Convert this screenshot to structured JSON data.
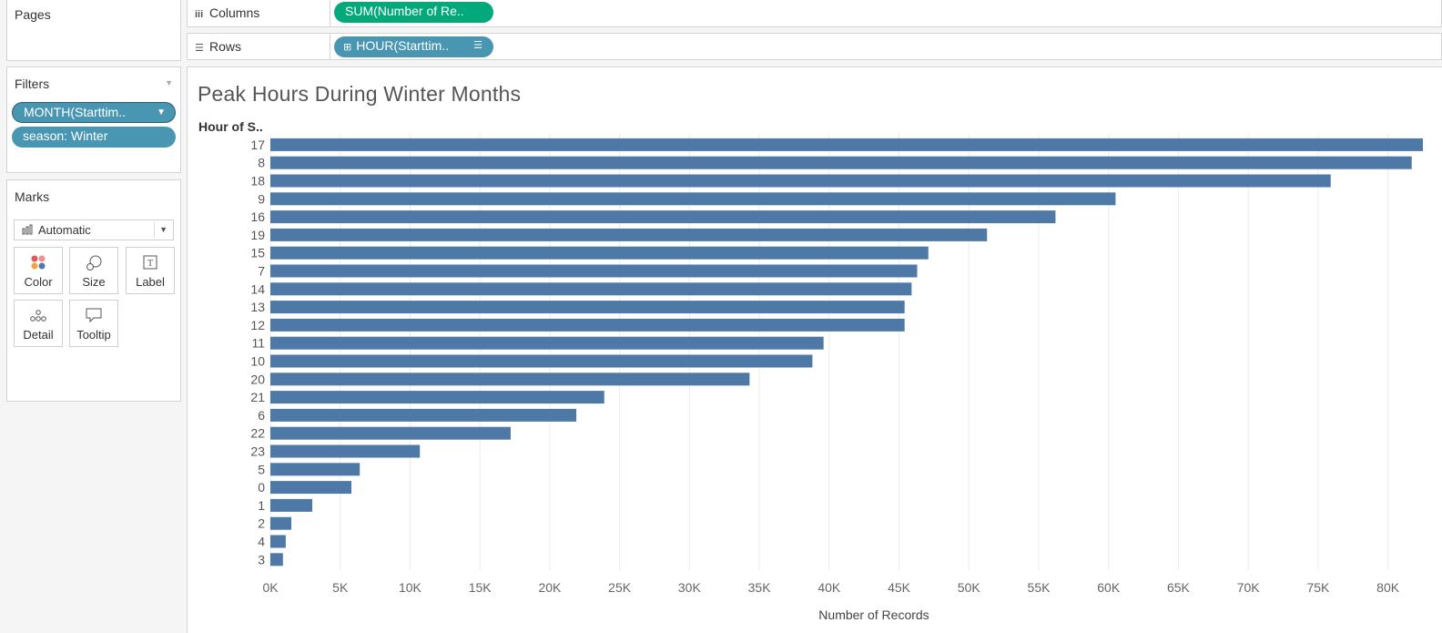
{
  "left_panel": {
    "pages_title": "Pages",
    "filters_title": "Filters",
    "filters": [
      {
        "label": "MONTH(Starttim.."
      },
      {
        "label": "season: Winter"
      }
    ],
    "marks_title": "Marks",
    "mark_type": "Automatic",
    "mark_buttons": [
      {
        "label": "Color",
        "icon": "color-icon"
      },
      {
        "label": "Size",
        "icon": "size-icon"
      },
      {
        "label": "Label",
        "icon": "label-icon"
      },
      {
        "label": "Detail",
        "icon": "detail-icon"
      },
      {
        "label": "Tooltip",
        "icon": "tooltip-icon"
      }
    ]
  },
  "shelves": {
    "columns_label": "Columns",
    "columns_pill": "SUM(Number of Re..",
    "rows_label": "Rows",
    "rows_pill": "HOUR(Starttim.."
  },
  "colors": {
    "bar": "#4e79a7",
    "pill_blue": "#4996b2",
    "pill_green": "#03a97a"
  },
  "chart_data": {
    "type": "bar",
    "orientation": "horizontal",
    "title": "Peak Hours During Winter Months",
    "ylabel": "Hour of S..",
    "xlabel": "Number of Records",
    "xlim": [
      0,
      82500
    ],
    "x_ticks": [
      0,
      5000,
      10000,
      15000,
      20000,
      25000,
      30000,
      35000,
      40000,
      45000,
      50000,
      55000,
      60000,
      65000,
      70000,
      75000,
      80000
    ],
    "x_tick_labels": [
      "0K",
      "5K",
      "10K",
      "15K",
      "20K",
      "25K",
      "30K",
      "35K",
      "40K",
      "45K",
      "50K",
      "55K",
      "60K",
      "65K",
      "70K",
      "75K",
      "80K"
    ],
    "grid": true,
    "categories": [
      "17",
      "8",
      "18",
      "9",
      "16",
      "19",
      "15",
      "7",
      "14",
      "13",
      "12",
      "11",
      "10",
      "20",
      "21",
      "6",
      "22",
      "23",
      "5",
      "0",
      "1",
      "2",
      "4",
      "3"
    ],
    "values": [
      82500,
      81700,
      75900,
      60500,
      56200,
      51300,
      47100,
      46300,
      45900,
      45400,
      45400,
      39600,
      38800,
      34300,
      23900,
      21900,
      17200,
      10700,
      6400,
      5800,
      3000,
      1500,
      1100,
      900
    ]
  }
}
